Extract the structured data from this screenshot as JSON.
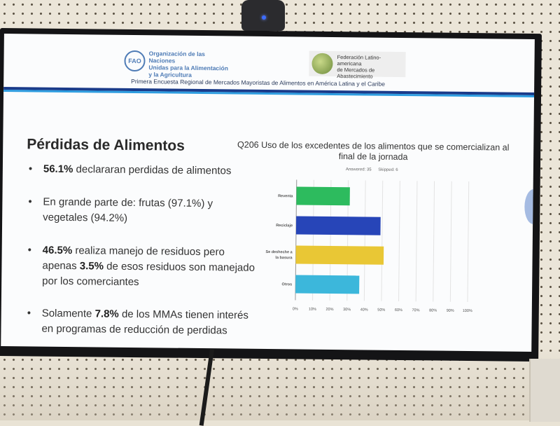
{
  "header": {
    "org_left": [
      "Organización de las Naciones",
      "Unidas para la Alimentación",
      "y la Agricultura"
    ],
    "org_right": [
      "Federación Latino-americana",
      "de Mercados de Abastecimiento"
    ],
    "survey_title": "Primera Encuesta Regional de Mercados Mayoristas de Alimentos en América Latina y el Caribe"
  },
  "slide": {
    "section_title": "Pérdidas de Alimentos",
    "bullets": [
      {
        "bold": "56.1%",
        "text": " declararan perdidas de alimentos"
      },
      {
        "bold": "",
        "text": "En grande parte de:  frutas (97.1%) y vegetales (94.2%)"
      },
      {
        "bold": "46.5%",
        "text": " realiza manejo de residuos pero apenas ",
        "bold2": "3.5%",
        "text2": " de esos residuos son manejado por los comerciantes"
      },
      {
        "pre": "Solamente ",
        "bold": "7.8%",
        "text": " de los MMAs tienen interés en programas de reducción de perdidas"
      }
    ]
  },
  "chart_meta": {
    "answered": "Answered: 35",
    "skipped": "Skipped: 6"
  },
  "chart_data": {
    "type": "bar",
    "orientation": "horizontal",
    "title": "Q206 Uso de los excedentes de los alimentos que se comercializan al final de la jornada",
    "categories": [
      "Reventa",
      "Reciclaje",
      "Se desheche a la basura",
      "Otros"
    ],
    "category_lines": [
      [
        "Reventa"
      ],
      [
        "Reciclaje"
      ],
      [
        "Se desheche a",
        "la basura"
      ],
      [
        "Otros"
      ]
    ],
    "values": [
      31,
      49,
      51,
      37
    ],
    "colors": [
      "#2dbb5e",
      "#2745b8",
      "#e9c735",
      "#3cb7db"
    ],
    "xlim": [
      0,
      100
    ],
    "xticks": [
      "0%",
      "10%",
      "20%",
      "30%",
      "40%",
      "50%",
      "60%",
      "70%",
      "80%",
      "90%",
      "100%"
    ],
    "grid": true
  }
}
